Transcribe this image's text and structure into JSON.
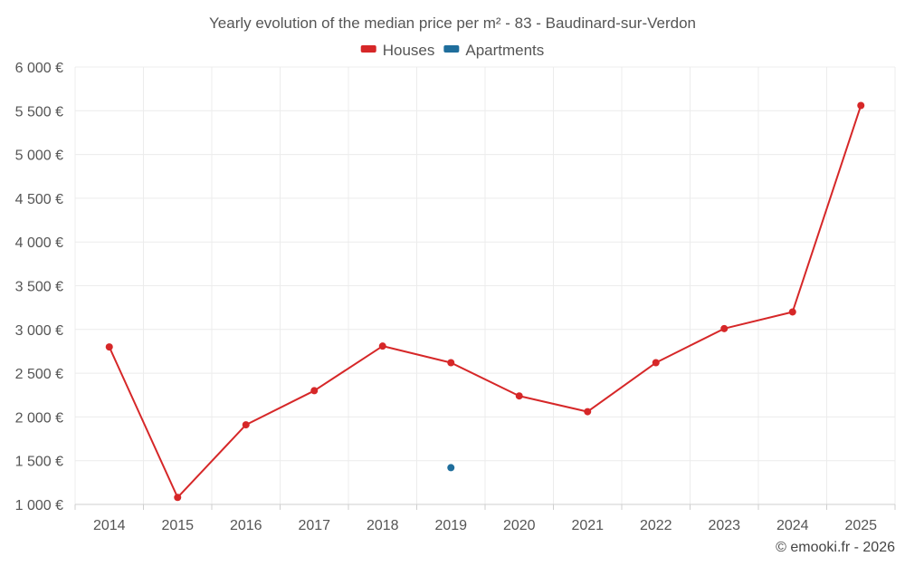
{
  "chart_data": {
    "type": "line",
    "title": "Yearly evolution of the median price per m² - 83 - Baudinard-sur-Verdon",
    "categories": [
      "2014",
      "2015",
      "2016",
      "2017",
      "2018",
      "2019",
      "2020",
      "2021",
      "2022",
      "2023",
      "2024",
      "2025"
    ],
    "series": [
      {
        "name": "Houses",
        "color": "#d62728",
        "values": [
          2800,
          1080,
          1910,
          2300,
          2810,
          2620,
          2240,
          2060,
          2620,
          3010,
          3200,
          5560
        ]
      },
      {
        "name": "Apartments",
        "color": "#1f6e9c",
        "values": [
          null,
          null,
          null,
          null,
          null,
          1420,
          null,
          null,
          null,
          null,
          null,
          null
        ]
      }
    ],
    "ylim": [
      1000,
      6000
    ],
    "yticks": [
      1000,
      1500,
      2000,
      2500,
      3000,
      3500,
      4000,
      4500,
      5000,
      5500,
      6000
    ],
    "ytick_labels": [
      "1 000 €",
      "1 500 €",
      "2 000 €",
      "2 500 €",
      "3 000 €",
      "3 500 €",
      "4 000 €",
      "4 500 €",
      "5 000 €",
      "5 500 €",
      "6 000 €"
    ],
    "xlabel": "",
    "ylabel": "",
    "grid": true,
    "legend": "top-center",
    "credit": "© emooki.fr - 2026"
  }
}
